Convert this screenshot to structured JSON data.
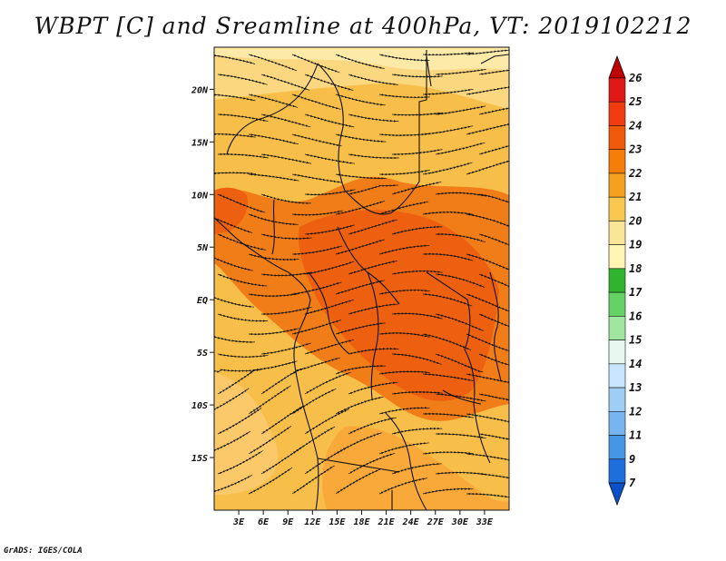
{
  "title": "WBPT [C] and Sreamline at 400hPa, VT: 2019102212",
  "credit": "GrADS: IGES/COLA",
  "map": {
    "variable": "WBPT",
    "units": "C",
    "level": "400hPa",
    "valid_time": "2019102212",
    "lon_range": [
      0,
      36
    ],
    "lat_range": [
      -20,
      24
    ],
    "lat_ticks": [
      {
        "value": 20,
        "label": "20N"
      },
      {
        "value": 15,
        "label": "15N"
      },
      {
        "value": 10,
        "label": "10N"
      },
      {
        "value": 5,
        "label": "5N"
      },
      {
        "value": 0,
        "label": "EQ"
      },
      {
        "value": -5,
        "label": "5S"
      },
      {
        "value": -10,
        "label": "10S"
      },
      {
        "value": -15,
        "label": "15S"
      }
    ],
    "lon_ticks": [
      {
        "value": 3,
        "label": "3E"
      },
      {
        "value": 6,
        "label": "6E"
      },
      {
        "value": 9,
        "label": "9E"
      },
      {
        "value": 12,
        "label": "12E"
      },
      {
        "value": 15,
        "label": "15E"
      },
      {
        "value": 18,
        "label": "18E"
      },
      {
        "value": 21,
        "label": "21E"
      },
      {
        "value": 24,
        "label": "24E"
      },
      {
        "value": 27,
        "label": "27E"
      },
      {
        "value": 30,
        "label": "30E"
      },
      {
        "value": 33,
        "label": "33E"
      }
    ]
  },
  "colorbar": {
    "labels": [
      "26",
      "25",
      "24",
      "23",
      "22",
      "21",
      "20",
      "19",
      "18",
      "17",
      "16",
      "15",
      "14",
      "13",
      "12",
      "11",
      "9",
      "7"
    ],
    "colors": [
      "#c00000",
      "#e01818",
      "#f03c10",
      "#f05a0a",
      "#f57d0a",
      "#f5a01e",
      "#fac850",
      "#fae696",
      "#fff5b4",
      "#30b430",
      "#64d264",
      "#a0e6a0",
      "#e6f8f0",
      "#c8e6ff",
      "#a0cdf5",
      "#78b4f0",
      "#4696e6",
      "#1e6edc",
      "#0a50c8"
    ]
  }
}
